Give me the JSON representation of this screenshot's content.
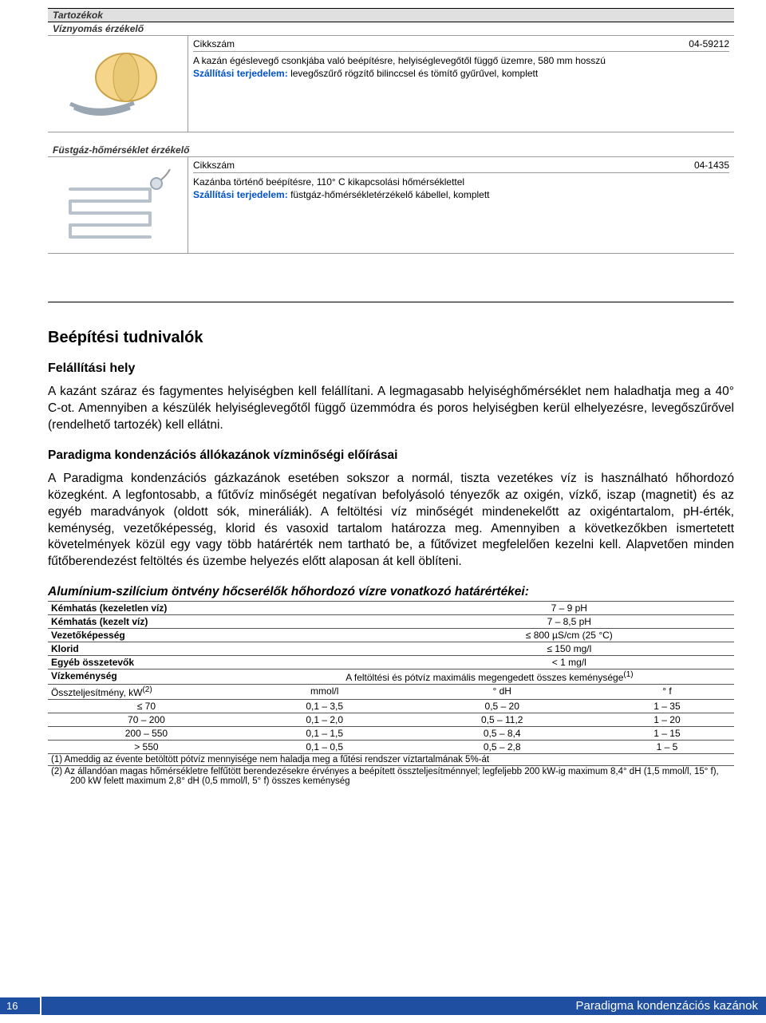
{
  "header": {
    "accessories": "Tartozékok",
    "sensor1_title": "Víznyomás érzékelő"
  },
  "item1": {
    "cikk_label": "Cikkszám",
    "cikk_value": "04-59212",
    "desc": "A kazán égéslevegő csonkjába való beépítésre, helyiséglevegőtől függő üzemre, 580 mm hosszú",
    "ship_label": "Szállítási terjedelem: ",
    "ship_value": "levegőszűrő rögzítő bilinccsel és tömítő gyűrűvel, komplett"
  },
  "sensor2_title": "Füstgáz-hőmérséklet érzékelő",
  "item2": {
    "cikk_label": "Cikkszám",
    "cikk_value": "04-1435",
    "desc": "Kazánba történő beépítésre, 110° C kikapcsolási hőmérséklettel",
    "ship_label": "Szállítási terjedelem: ",
    "ship_value": "füstgáz-hőmérsékletérzékelő kábellel, komplett"
  },
  "tudni": {
    "title": "Beépítési tudnivalók",
    "h_felall": "Felállítási hely",
    "p1": "A kazánt száraz és fagymentes helyiségben kell felállítani. A legmagasabb helyiséghőmérséklet nem haladhatja meg a 40° C-ot. Amennyiben a készülék helyiséglevegőtől függő üzemmódra és poros helyiségben kerül elhelyezésre, levegőszűrővel (rendelhető tartozék) kell ellátni.",
    "h_para": "Paradigma kondenzációs állókazánok vízminőségi előírásai",
    "p2": "A Paradigma kondenzációs gázkazánok esetében sokszor a normál, tiszta vezetékes víz is használható hőhordozó közegként. A legfontosabb, a fűtővíz minőségét negatívan befolyásoló tényezők az oxigén, vízkő, iszap (magnetit) és az egyéb maradványok (oldott sók, mineráliák). A feltöltési víz minőségét mindenekelőtt az oxigéntartalom, pH-érték, keménység, vezetőképesség, klorid és vasoxid tartalom határozza meg. Amennyiben a következőkben ismertetett követelmények közül egy vagy több határérték nem tartható be, a fűtővizet megfelelően kezelni kell. Alapvetően minden fűtőberendezést feltöltés és üzembe helyezés előtt alaposan át kell öblíteni.",
    "h_alum": "Alumínium-szilícium öntvény hőcserélők hőhordozó vízre vonatkozó határértékei:"
  },
  "limits": {
    "rows_pair": [
      [
        "Kémhatás (kezeletlen víz)",
        "7 – 9 pH"
      ],
      [
        "Kémhatás (kezelt víz)",
        "7 – 8,5 pH"
      ],
      [
        "Vezetőképesség",
        "≤ 800 µS/cm (25 °C)"
      ],
      [
        "Klorid",
        "≤ 150 mg/l"
      ],
      [
        "Egyéb összetevők",
        "< 1 mg/l"
      ]
    ],
    "hardness_label": "Vízkeménység",
    "hardness_value": "A feltöltési és pótvíz maximális megengedett összes keménysége",
    "hardness_sup": "(1)",
    "col_headers": [
      "Összteljesítmény, kW",
      "mmol/l",
      "° dH",
      "° f"
    ],
    "col_sup": "(2)",
    "grid": [
      [
        "≤ 70",
        "0,1 – 3,5",
        "0,5 – 20",
        "1 – 35"
      ],
      [
        "70 – 200",
        "0,1 – 2,0",
        "0,5 – 11,2",
        "1 – 20"
      ],
      [
        "200 – 550",
        "0,1 – 1,5",
        "0,5 – 8,4",
        "1 – 15"
      ],
      [
        "> 550",
        "0,1 – 0,5",
        "0,5 – 2,8",
        "1 – 5"
      ]
    ],
    "note1": "(1)   Ameddig az évente betöltött pótvíz mennyisége nem haladja meg a fűtési rendszer víztartalmának 5%-át",
    "note2": "(2)   Az állandóan magas hőmérsékletre felfűtött berendezésekre érvényes a beépített összteljesítménnyel; legfeljebb 200 kW-ig maximum 8,4° dH (1,5 mmol/l, 15° f), 200 kW felett maximum 2,8° dH (0,5 mmol/l, 5° f) összes keménység"
  },
  "footer": {
    "page": "16",
    "title": "Paradigma kondenzációs kazánok"
  },
  "colors": {
    "header_bg": "#e0e0e0",
    "ship_blue": "#0050c8",
    "footer_blue": "#1e4fa0"
  }
}
